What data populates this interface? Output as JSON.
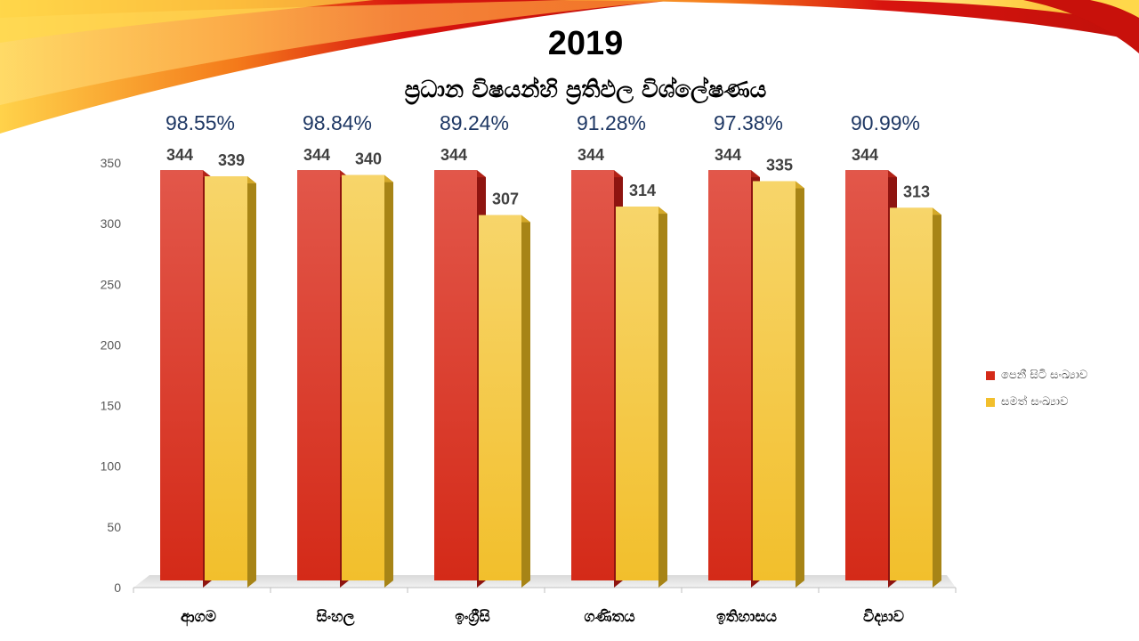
{
  "colors": {
    "series_sat": "#d42a18",
    "series_pass": "#f2bf2c",
    "axis_text": "#595959",
    "percent_text": "#1f3864"
  },
  "chart_data": {
    "type": "bar",
    "title": "2019",
    "subtitle": "ප්‍රධාන විෂයන්හි ප්‍රතිඵල විශ්ලේෂණය",
    "categories": [
      "ආගම",
      "සිංහල",
      "ඉංග්‍රීසි",
      "ගණිතය",
      "ඉතිහාසය",
      "විද්‍යාව"
    ],
    "series": [
      {
        "name": "පෙනී සිටි සංඛ්‍යාව",
        "values": [
          344,
          344,
          344,
          344,
          344,
          344
        ]
      },
      {
        "name": "සමත් සංඛ්‍යාව",
        "values": [
          339,
          340,
          307,
          314,
          335,
          313
        ]
      }
    ],
    "pass_rates": [
      "98.55%",
      "98.84%",
      "89.24%",
      "91.28%",
      "97.38%",
      "90.99%"
    ],
    "ylim": [
      0,
      350
    ],
    "yticks": [
      0,
      50,
      100,
      150,
      200,
      250,
      300,
      350
    ],
    "legend_position": "right",
    "grid": false
  }
}
